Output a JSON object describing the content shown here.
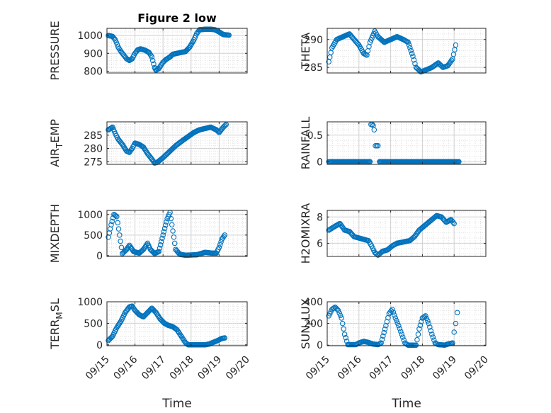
{
  "figure": {
    "title": "Figure 2 low",
    "xlabel": "Time",
    "marker_color": "#0072BD",
    "axis_color": "#262626",
    "grid_color": "#cfcfcf",
    "grid": true,
    "x_tick_labels": [
      "09/15",
      "09/16",
      "09/17",
      "09/18",
      "09/19",
      "09/20"
    ]
  },
  "chart_data": [
    {
      "type": "scatter",
      "title": "Figure 2 low",
      "ylabel": "PRESSURE",
      "ylabel_sub": "",
      "ylabel_tail": "",
      "xlim": [
        0,
        5
      ],
      "ylim": [
        790,
        1040
      ],
      "yticks": [
        800,
        900,
        1000
      ],
      "x_tick_labels": [],
      "xlabel": "",
      "keys": [
        [
          0.05,
          1000
        ],
        [
          0.2,
          995
        ],
        [
          0.3,
          975
        ],
        [
          0.4,
          935
        ],
        [
          0.5,
          910
        ],
        [
          0.6,
          890
        ],
        [
          0.7,
          870
        ],
        [
          0.8,
          860
        ],
        [
          0.9,
          870
        ],
        [
          1.0,
          900
        ],
        [
          1.1,
          920
        ],
        [
          1.2,
          925
        ],
        [
          1.35,
          918
        ],
        [
          1.5,
          905
        ],
        [
          1.6,
          880
        ],
        [
          1.7,
          820
        ],
        [
          1.75,
          805
        ],
        [
          1.85,
          815
        ],
        [
          2.0,
          850
        ],
        [
          2.1,
          865
        ],
        [
          2.25,
          880
        ],
        [
          2.35,
          895
        ],
        [
          2.5,
          900
        ],
        [
          2.65,
          905
        ],
        [
          2.8,
          910
        ],
        [
          2.95,
          935
        ],
        [
          3.1,
          975
        ],
        [
          3.2,
          1010
        ],
        [
          3.3,
          1032
        ],
        [
          3.5,
          1035
        ],
        [
          3.7,
          1035
        ],
        [
          3.85,
          1032
        ],
        [
          4.0,
          1020
        ],
        [
          4.15,
          1005
        ],
        [
          4.35,
          1002
        ]
      ],
      "step": 0.03
    },
    {
      "type": "scatter",
      "ylabel": "THETA",
      "ylabel_sub": "",
      "ylabel_tail": "",
      "xlim": [
        0,
        5
      ],
      "ylim": [
        284,
        292
      ],
      "yticks": [
        285,
        290
      ],
      "x_tick_labels": [],
      "xlabel": "",
      "keys": [
        [
          0.05,
          286
        ],
        [
          0.15,
          288.5
        ],
        [
          0.3,
          290
        ],
        [
          0.5,
          290.5
        ],
        [
          0.7,
          291
        ],
        [
          0.85,
          290
        ],
        [
          1.0,
          289
        ],
        [
          1.15,
          287.5
        ],
        [
          1.25,
          287.2
        ],
        [
          1.35,
          289.5
        ],
        [
          1.5,
          291.5
        ],
        [
          1.6,
          290.5
        ],
        [
          1.8,
          289.5
        ],
        [
          2.0,
          290
        ],
        [
          2.2,
          290.5
        ],
        [
          2.4,
          290
        ],
        [
          2.55,
          289.5
        ],
        [
          2.7,
          287
        ],
        [
          2.8,
          285
        ],
        [
          2.95,
          284.2
        ],
        [
          3.1,
          284.5
        ],
        [
          3.3,
          285
        ],
        [
          3.5,
          285.8
        ],
        [
          3.65,
          285
        ],
        [
          3.8,
          285.3
        ],
        [
          3.95,
          286.5
        ],
        [
          4.05,
          289
        ]
      ],
      "step": 0.03
    },
    {
      "type": "scatter",
      "ylabel": "AIR",
      "ylabel_sub": "T",
      "ylabel_tail": "EMP",
      "xlim": [
        0,
        5
      ],
      "ylim": [
        274,
        290
      ],
      "yticks": [
        275,
        280,
        285
      ],
      "x_tick_labels": [],
      "xlabel": "",
      "keys": [
        [
          0.05,
          287
        ],
        [
          0.2,
          288
        ],
        [
          0.3,
          285.5
        ],
        [
          0.4,
          283.5
        ],
        [
          0.55,
          281.5
        ],
        [
          0.7,
          279
        ],
        [
          0.8,
          278.5
        ],
        [
          0.9,
          280
        ],
        [
          1.0,
          282
        ],
        [
          1.15,
          281.5
        ],
        [
          1.3,
          280.5
        ],
        [
          1.45,
          278
        ],
        [
          1.6,
          276
        ],
        [
          1.7,
          274.5
        ],
        [
          1.8,
          274.8
        ],
        [
          2.0,
          276.5
        ],
        [
          2.2,
          278.5
        ],
        [
          2.45,
          281
        ],
        [
          2.7,
          283
        ],
        [
          2.9,
          284.5
        ],
        [
          3.1,
          286
        ],
        [
          3.3,
          287
        ],
        [
          3.5,
          287.5
        ],
        [
          3.7,
          288
        ],
        [
          3.9,
          287
        ],
        [
          4.0,
          286
        ],
        [
          4.15,
          288
        ],
        [
          4.25,
          289
        ]
      ],
      "step": 0.03
    },
    {
      "type": "scatter",
      "ylabel": "RAINFALL",
      "ylabel_sub": "",
      "ylabel_tail": "",
      "xlim": [
        0,
        5
      ],
      "ylim": [
        -0.05,
        0.75
      ],
      "yticks": [
        0,
        0.5
      ],
      "x_tick_labels": [],
      "xlabel": "",
      "keys": [
        [
          0.05,
          0
        ],
        [
          1.35,
          0
        ]
      ],
      "extra_points": [
        [
          1.38,
          0.7
        ],
        [
          1.42,
          0.7
        ],
        [
          1.45,
          0.68
        ],
        [
          1.48,
          0.6
        ],
        [
          1.52,
          0.3
        ],
        [
          1.56,
          0.3
        ],
        [
          1.6,
          0.3
        ]
      ],
      "keys2": [
        [
          1.65,
          0
        ],
        [
          4.15,
          0
        ]
      ],
      "step": 0.025
    },
    {
      "type": "scatter",
      "ylabel": "MIXDEPTH",
      "ylabel_sub": "",
      "ylabel_tail": "",
      "xlim": [
        0,
        5
      ],
      "ylim": [
        -20,
        1100
      ],
      "yticks": [
        0,
        500,
        1000
      ],
      "x_tick_labels": [],
      "xlabel": "",
      "keys": [
        [
          0.05,
          450
        ],
        [
          0.15,
          750
        ],
        [
          0.25,
          1000
        ],
        [
          0.35,
          950
        ],
        [
          0.45,
          500
        ],
        [
          0.55,
          50
        ],
        [
          0.7,
          150
        ],
        [
          0.8,
          250
        ],
        [
          0.95,
          100
        ],
        [
          1.15,
          60
        ],
        [
          1.3,
          150
        ],
        [
          1.45,
          300
        ],
        [
          1.55,
          150
        ],
        [
          1.7,
          50
        ],
        [
          1.85,
          100
        ],
        [
          2.0,
          500
        ],
        [
          2.15,
          900
        ],
        [
          2.25,
          1050
        ],
        [
          2.35,
          600
        ],
        [
          2.45,
          150
        ],
        [
          2.6,
          30
        ],
        [
          2.8,
          10
        ],
        [
          3.2,
          20
        ],
        [
          3.5,
          80
        ],
        [
          3.75,
          60
        ],
        [
          3.9,
          60
        ],
        [
          4.0,
          200
        ],
        [
          4.1,
          400
        ],
        [
          4.2,
          500
        ]
      ],
      "step": 0.03
    },
    {
      "type": "scatter",
      "ylabel": "H2OMIXRA",
      "ylabel_sub": "",
      "ylabel_tail": "",
      "xlim": [
        0,
        5
      ],
      "ylim": [
        5,
        8.5
      ],
      "yticks": [
        6,
        8
      ],
      "x_tick_labels": [],
      "xlabel": "",
      "keys": [
        [
          0.05,
          7
        ],
        [
          0.25,
          7.3
        ],
        [
          0.4,
          7.5
        ],
        [
          0.55,
          7
        ],
        [
          0.7,
          6.9
        ],
        [
          0.85,
          6.5
        ],
        [
          1.0,
          6.4
        ],
        [
          1.15,
          6.3
        ],
        [
          1.3,
          6.2
        ],
        [
          1.4,
          5.8
        ],
        [
          1.5,
          5.3
        ],
        [
          1.6,
          5.1
        ],
        [
          1.75,
          5.4
        ],
        [
          1.9,
          5.5
        ],
        [
          2.05,
          5.8
        ],
        [
          2.2,
          6
        ],
        [
          2.4,
          6.1
        ],
        [
          2.6,
          6.2
        ],
        [
          2.75,
          6.5
        ],
        [
          2.9,
          7
        ],
        [
          3.1,
          7.4
        ],
        [
          3.3,
          7.8
        ],
        [
          3.45,
          8.1
        ],
        [
          3.6,
          8
        ],
        [
          3.75,
          7.6
        ],
        [
          3.9,
          7.8
        ],
        [
          4.0,
          7.5
        ]
      ],
      "step": 0.03
    },
    {
      "type": "scatter",
      "ylabel": "TERR",
      "ylabel_sub": "M",
      "ylabel_tail": "SL",
      "xlim": [
        0,
        5
      ],
      "ylim": [
        -20,
        1000
      ],
      "yticks": [
        0,
        500,
        1000
      ],
      "x_tick_labels": [
        "09/15",
        "09/16",
        "09/17",
        "09/18",
        "09/19",
        "09/20"
      ],
      "xlabel": "Time",
      "keys": [
        [
          0.05,
          100
        ],
        [
          0.2,
          200
        ],
        [
          0.35,
          400
        ],
        [
          0.5,
          550
        ],
        [
          0.65,
          750
        ],
        [
          0.8,
          880
        ],
        [
          0.9,
          900
        ],
        [
          1.0,
          800
        ],
        [
          1.15,
          700
        ],
        [
          1.3,
          650
        ],
        [
          1.45,
          750
        ],
        [
          1.6,
          850
        ],
        [
          1.75,
          750
        ],
        [
          1.9,
          600
        ],
        [
          2.05,
          500
        ],
        [
          2.2,
          450
        ],
        [
          2.35,
          420
        ],
        [
          2.5,
          350
        ],
        [
          2.6,
          250
        ],
        [
          2.7,
          150
        ],
        [
          2.8,
          50
        ],
        [
          2.9,
          0
        ],
        [
          3.5,
          0
        ],
        [
          3.65,
          20
        ],
        [
          3.8,
          60
        ],
        [
          3.95,
          100
        ],
        [
          4.1,
          150
        ],
        [
          4.2,
          160
        ]
      ],
      "step": 0.03
    },
    {
      "type": "scatter",
      "ylabel": "SUN",
      "ylabel_sub": "F",
      "ylabel_tail": "LUX",
      "xlim": [
        0,
        5
      ],
      "ylim": [
        -5,
        400
      ],
      "yticks": [
        0,
        200,
        400
      ],
      "x_tick_labels": [
        "09/15",
        "09/16",
        "09/17",
        "09/18",
        "09/19",
        "09/20"
      ],
      "xlabel": "Time",
      "keys": [
        [
          0.05,
          270
        ],
        [
          0.15,
          330
        ],
        [
          0.25,
          350
        ],
        [
          0.35,
          320
        ],
        [
          0.45,
          250
        ],
        [
          0.55,
          100
        ],
        [
          0.65,
          5
        ],
        [
          0.9,
          5
        ],
        [
          1.0,
          20
        ],
        [
          1.15,
          35
        ],
        [
          1.3,
          25
        ],
        [
          1.45,
          10
        ],
        [
          1.6,
          5
        ],
        [
          1.7,
          20
        ],
        [
          1.85,
          180
        ],
        [
          1.95,
          290
        ],
        [
          2.05,
          330
        ],
        [
          2.15,
          250
        ],
        [
          2.25,
          180
        ],
        [
          2.35,
          100
        ],
        [
          2.45,
          20
        ],
        [
          2.55,
          0
        ],
        [
          2.8,
          0
        ],
        [
          2.9,
          150
        ],
        [
          3.0,
          250
        ],
        [
          3.1,
          270
        ],
        [
          3.2,
          200
        ],
        [
          3.3,
          100
        ],
        [
          3.4,
          20
        ],
        [
          3.5,
          5
        ],
        [
          3.7,
          0
        ],
        [
          3.8,
          10
        ],
        [
          3.95,
          20
        ]
      ],
      "extra_points": [
        [
          4.0,
          120
        ],
        [
          4.05,
          200
        ],
        [
          4.1,
          300
        ]
      ],
      "step": 0.03
    }
  ]
}
